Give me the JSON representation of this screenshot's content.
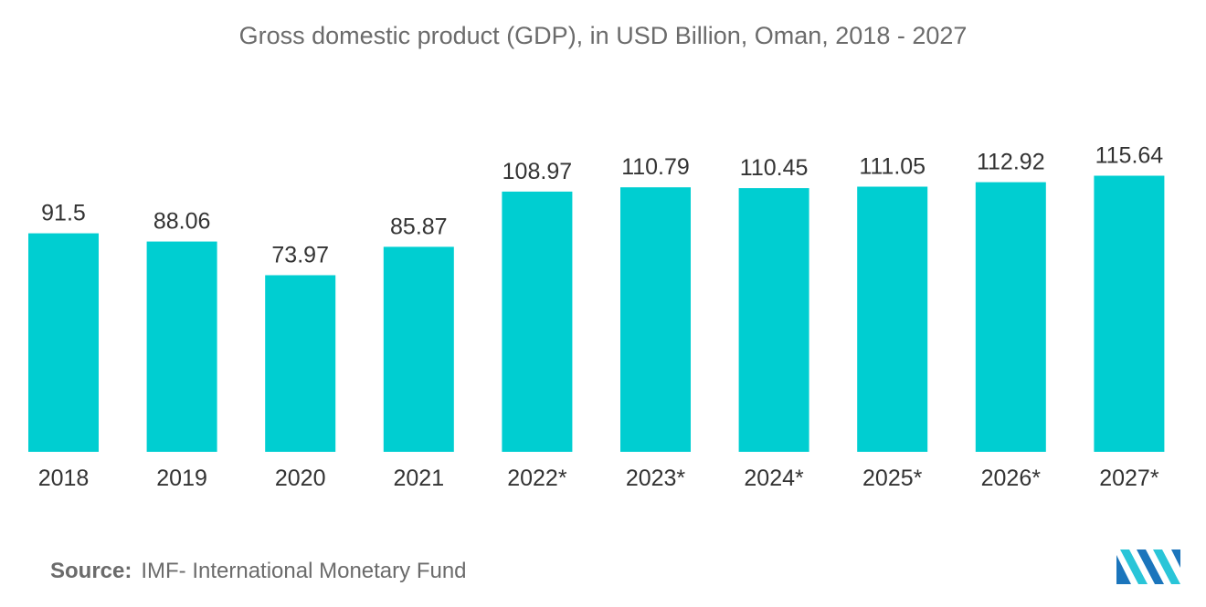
{
  "chart_data": {
    "type": "bar",
    "title": "Gross domestic product (GDP),  in USD Billion, Oman, 2018 - 2027",
    "categories": [
      "2018",
      "2019",
      "2020",
      "2021",
      "2022*",
      "2023*",
      "2024*",
      "2025*",
      "2026*",
      "2027*"
    ],
    "values": [
      91.5,
      88.06,
      73.97,
      85.87,
      108.97,
      110.79,
      110.45,
      111.05,
      112.92,
      115.64
    ],
    "value_labels": [
      "91.5",
      "88.06",
      "73.97",
      "85.87",
      "108.97",
      "110.79",
      "110.45",
      "111.05",
      "112.92",
      "115.64"
    ],
    "xlabel": "",
    "ylabel": "",
    "ylim": [
      0,
      120
    ],
    "grid": false,
    "legend": "none",
    "bar_color": "#00CED1"
  },
  "source": {
    "label": "Source:",
    "text": "IMF- International Monetary Fund"
  },
  "logo": {
    "icon": "mordor-intelligence-logo-icon",
    "colors": [
      "#1B75BC",
      "#29C5D8"
    ]
  }
}
